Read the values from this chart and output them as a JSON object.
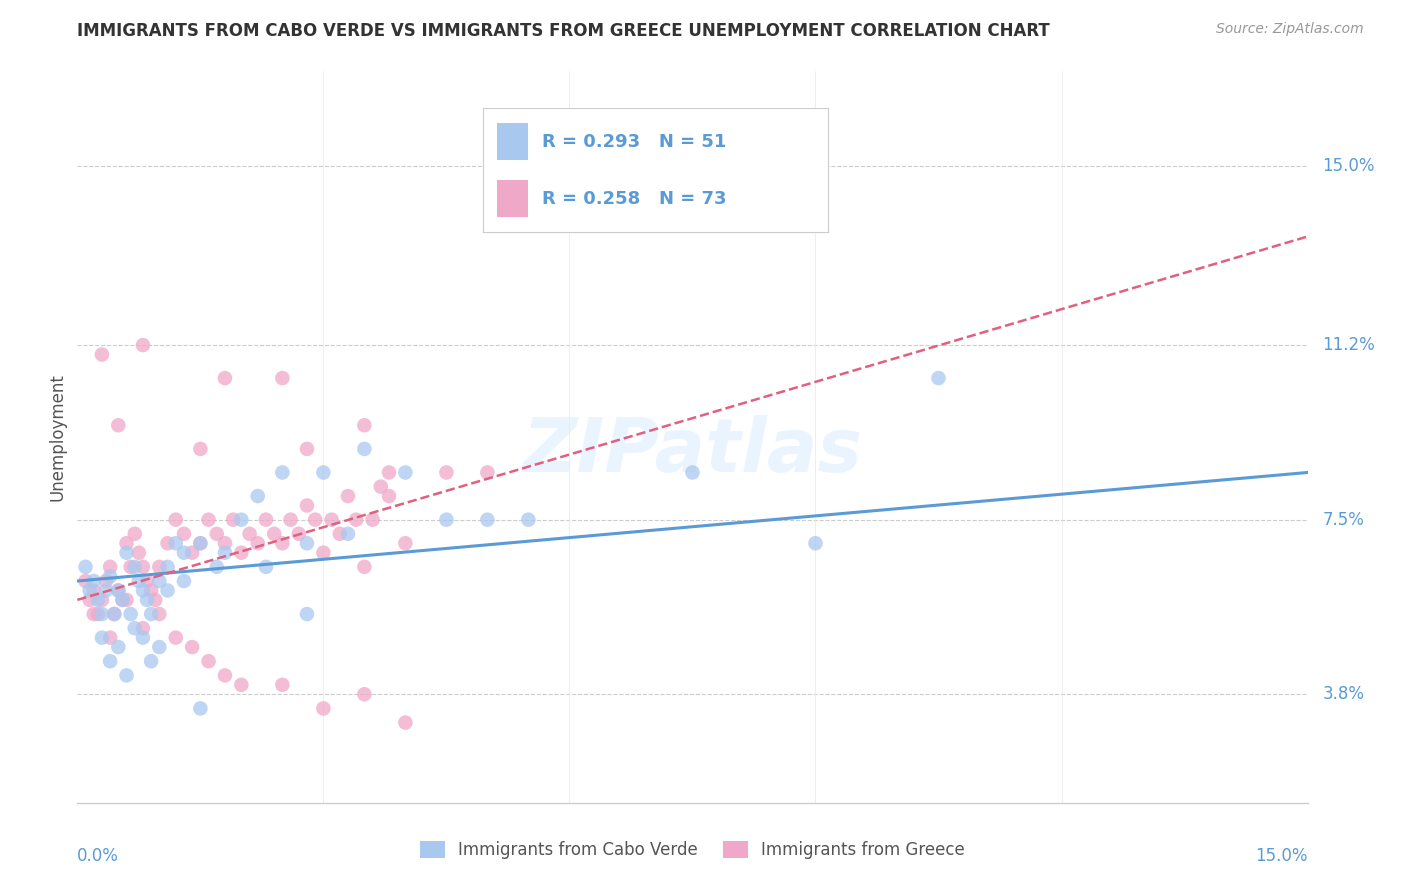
{
  "title": "IMMIGRANTS FROM CABO VERDE VS IMMIGRANTS FROM GREECE UNEMPLOYMENT CORRELATION CHART",
  "source": "Source: ZipAtlas.com",
  "ylabel": "Unemployment",
  "ytick_labels": [
    "3.8%",
    "7.5%",
    "11.2%",
    "15.0%"
  ],
  "ytick_values": [
    3.8,
    7.5,
    11.2,
    15.0
  ],
  "xlim": [
    0.0,
    15.0
  ],
  "ylim": [
    1.5,
    17.0
  ],
  "color_cabo_verde": "#a8c8f0",
  "color_greece": "#f0a8c8",
  "line_color_cabo_verde": "#5b9bd5",
  "line_color_greece": "#e06080",
  "background_color": "#ffffff",
  "watermark": "ZIPatlas",
  "cabo_verde_x": [
    0.1,
    0.15,
    0.2,
    0.25,
    0.3,
    0.35,
    0.4,
    0.45,
    0.5,
    0.55,
    0.6,
    0.65,
    0.7,
    0.75,
    0.8,
    0.85,
    0.9,
    1.0,
    1.1,
    1.2,
    1.3,
    1.5,
    1.7,
    2.0,
    2.2,
    2.5,
    2.8,
    3.0,
    3.5,
    4.0,
    5.0,
    7.5,
    9.0,
    10.5,
    0.3,
    0.5,
    0.7,
    0.9,
    1.1,
    1.3,
    1.8,
    2.3,
    2.8,
    3.3,
    4.5,
    5.5,
    0.4,
    0.6,
    0.8,
    1.0,
    1.5
  ],
  "cabo_verde_y": [
    6.5,
    6.0,
    6.2,
    5.8,
    5.5,
    6.0,
    6.3,
    5.5,
    6.0,
    5.8,
    6.8,
    5.5,
    6.5,
    6.2,
    6.0,
    5.8,
    5.5,
    6.2,
    6.5,
    7.0,
    6.8,
    7.0,
    6.5,
    7.5,
    8.0,
    8.5,
    7.0,
    8.5,
    9.0,
    8.5,
    7.5,
    8.5,
    7.0,
    10.5,
    5.0,
    4.8,
    5.2,
    4.5,
    6.0,
    6.2,
    6.8,
    6.5,
    5.5,
    7.2,
    7.5,
    7.5,
    4.5,
    4.2,
    5.0,
    4.8,
    3.5
  ],
  "greece_x": [
    0.1,
    0.15,
    0.2,
    0.25,
    0.3,
    0.35,
    0.4,
    0.45,
    0.5,
    0.55,
    0.6,
    0.65,
    0.7,
    0.75,
    0.8,
    0.85,
    0.9,
    0.95,
    1.0,
    1.1,
    1.2,
    1.3,
    1.4,
    1.5,
    1.6,
    1.7,
    1.8,
    1.9,
    2.0,
    2.1,
    2.2,
    2.3,
    2.4,
    2.5,
    2.6,
    2.7,
    2.8,
    2.9,
    3.0,
    3.1,
    3.2,
    3.3,
    3.4,
    3.5,
    3.6,
    3.7,
    3.8,
    4.0,
    4.5,
    5.0,
    0.2,
    0.4,
    0.6,
    0.8,
    1.0,
    1.2,
    1.4,
    1.6,
    1.8,
    2.0,
    2.5,
    3.0,
    3.5,
    4.0,
    0.5,
    1.5,
    2.5,
    3.5,
    0.8,
    1.8,
    2.8,
    3.8,
    0.3
  ],
  "greece_y": [
    6.2,
    5.8,
    6.0,
    5.5,
    5.8,
    6.2,
    6.5,
    5.5,
    6.0,
    5.8,
    7.0,
    6.5,
    7.2,
    6.8,
    6.5,
    6.2,
    6.0,
    5.8,
    6.5,
    7.0,
    7.5,
    7.2,
    6.8,
    7.0,
    7.5,
    7.2,
    7.0,
    7.5,
    6.8,
    7.2,
    7.0,
    7.5,
    7.2,
    7.0,
    7.5,
    7.2,
    7.8,
    7.5,
    6.8,
    7.5,
    7.2,
    8.0,
    7.5,
    6.5,
    7.5,
    8.2,
    8.0,
    7.0,
    8.5,
    8.5,
    5.5,
    5.0,
    5.8,
    5.2,
    5.5,
    5.0,
    4.8,
    4.5,
    4.2,
    4.0,
    4.0,
    3.5,
    3.8,
    3.2,
    9.5,
    9.0,
    10.5,
    9.5,
    11.2,
    10.5,
    9.0,
    8.5,
    11.0
  ]
}
